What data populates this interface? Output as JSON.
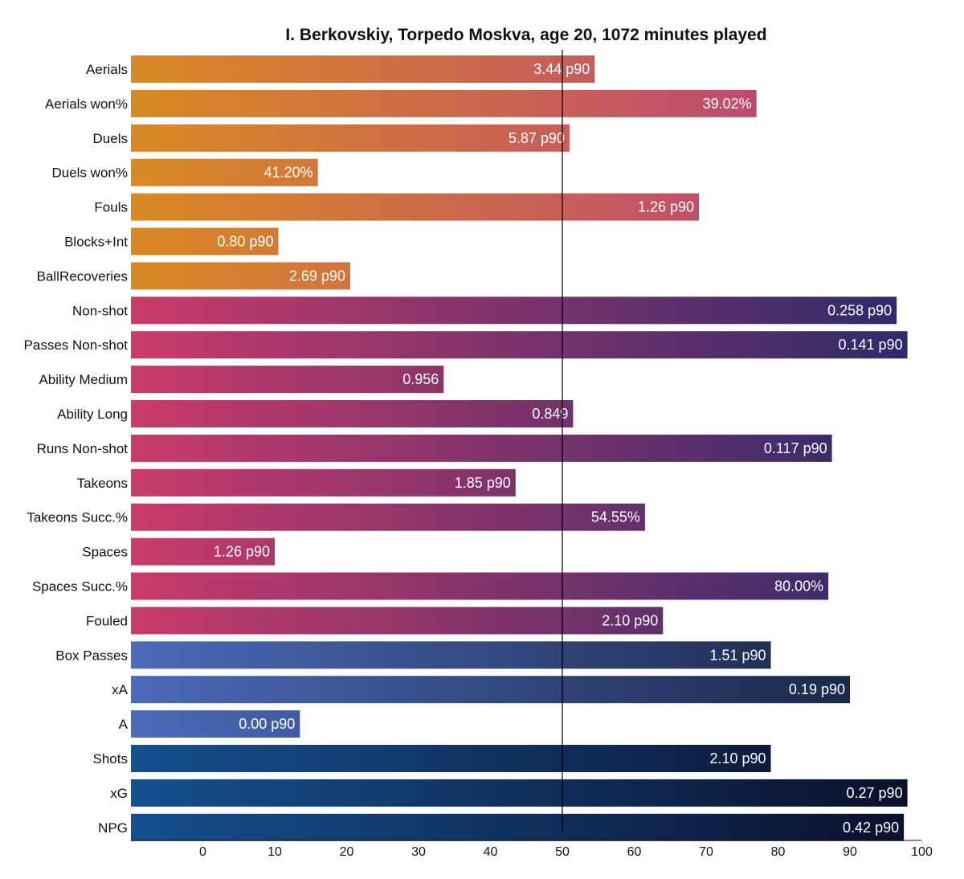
{
  "chart_data": {
    "type": "bar",
    "orientation": "horizontal",
    "title": "I. Berkovskiy, Torpedo Moskva, age 20, 1072 minutes played",
    "xlabel": "",
    "ylabel": "",
    "xlim": [
      -10,
      100
    ],
    "xticks": [
      0,
      10,
      20,
      30,
      40,
      50,
      60,
      70,
      80,
      90,
      100
    ],
    "reference_line": 50,
    "categories": [
      "Aerials",
      "Aerials won%",
      "Duels",
      "Duels won%",
      "Fouls",
      "Blocks+Int",
      "BallRecoveries",
      "Non-shot",
      "Passes Non-shot",
      "Ability Medium",
      "Ability Long",
      "Runs Non-shot",
      "Takeons",
      "Takeons Succ.%",
      "Spaces",
      "Spaces Succ.%",
      "Fouled",
      "Box Passes",
      "xA",
      "A",
      "Shots",
      "xG",
      "NPG"
    ],
    "values": [
      54.5,
      77.0,
      51.0,
      16.0,
      69.0,
      10.5,
      20.5,
      96.5,
      98.0,
      33.5,
      51.5,
      87.5,
      43.5,
      61.5,
      10.0,
      87.0,
      64.0,
      79.0,
      90.0,
      13.5,
      79.0,
      98.0,
      97.5
    ],
    "value_labels": [
      "3.44 p90",
      "39.02%",
      "5.87 p90",
      "41.20%",
      "1.26 p90",
      "0.80 p90",
      "2.69 p90",
      "0.258 p90",
      "0.141 p90",
      "0.956",
      "0.849",
      "0.117 p90",
      "1.85 p90",
      "54.55%",
      "1.26 p90",
      "80.00%",
      "2.10 p90",
      "1.51 p90",
      "0.19 p90",
      "0.00 p90",
      "2.10 p90",
      "0.27 p90",
      "0.42 p90"
    ],
    "groups": [
      0,
      0,
      0,
      0,
      0,
      0,
      0,
      1,
      1,
      1,
      1,
      1,
      1,
      1,
      1,
      1,
      1,
      2,
      2,
      2,
      3,
      3,
      3
    ],
    "group_colors": [
      [
        "#d98a22",
        "#b83a86"
      ],
      [
        "#c93b6b",
        "#2b2a6b"
      ],
      [
        "#4b6ab8",
        "#17223f"
      ],
      [
        "#15508f",
        "#0a0f2a"
      ]
    ]
  }
}
